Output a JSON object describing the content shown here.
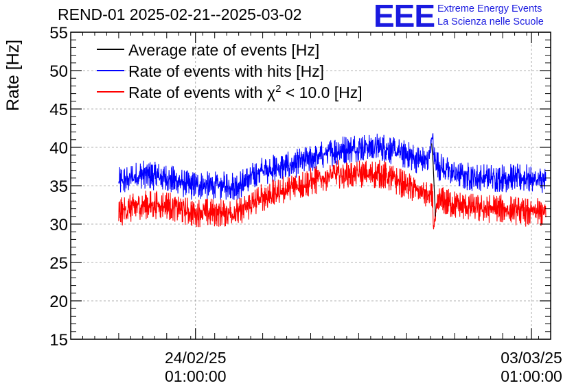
{
  "title": "REND-01 2025-02-21--2025-03-02",
  "logo": {
    "mark": "EEE",
    "line1": "Extreme Energy Events",
    "line2": "La Scienza nelle Scuole"
  },
  "colors": {
    "average": "#000000",
    "hits": "#0000ff",
    "chi2": "#ff0000",
    "grid": "#999999",
    "logo": "#1a1ae0"
  },
  "chart_data": {
    "type": "line",
    "title": "REND-01 2025-02-21--2025-03-02",
    "ylabel": "Rate [Hz]",
    "xlabel": "",
    "ylim": [
      15,
      55
    ],
    "xlim_days": [
      0,
      10
    ],
    "y_ticks": [
      15,
      20,
      25,
      30,
      35,
      40,
      45,
      50,
      55
    ],
    "x_ticks": [
      {
        "day": 2.6,
        "label1": "24/02/25",
        "label2": "01:00:00"
      },
      {
        "day": 9.6,
        "label1": "03/03/25",
        "label2": "01:00:00"
      }
    ],
    "grid": true,
    "legend_position": "top-left",
    "legend": [
      {
        "name": "Average rate of events [Hz]",
        "key": "average"
      },
      {
        "name": "Rate of events with hits [Hz]",
        "key": "hits"
      },
      {
        "name": "Rate of events with χ² < 10.0 [Hz]",
        "key": "chi2",
        "prefix": "Rate of events with ",
        "chi": "χ",
        "sup": "2",
        "suffix": " < 10.0 [Hz]"
      }
    ],
    "series": [
      {
        "name": "Rate of events with hits [Hz]",
        "key": "hits",
        "x_days": [
          1.0,
          1.5,
          2.0,
          2.5,
          3.0,
          3.5,
          4.0,
          4.5,
          5.0,
          5.5,
          6.0,
          6.5,
          7.0,
          7.2,
          7.5,
          8.0,
          8.5,
          9.0,
          9.5,
          9.9
        ],
        "values": [
          35.5,
          36.5,
          36.0,
          35.0,
          35.0,
          35.0,
          37.0,
          37.5,
          38.5,
          39.5,
          40.0,
          40.0,
          39.0,
          38.5,
          38.0,
          36.5,
          36.0,
          36.0,
          36.0,
          35.5
        ],
        "noise": 1.3
      },
      {
        "name": "Rate of events with χ² < 10.0 [Hz]",
        "key": "chi2",
        "x_days": [
          1.0,
          1.5,
          2.0,
          2.5,
          3.0,
          3.5,
          4.0,
          4.5,
          5.0,
          5.5,
          6.0,
          6.5,
          7.0,
          7.2,
          7.5,
          8.0,
          8.5,
          9.0,
          9.5,
          9.9
        ],
        "values": [
          31.5,
          32.5,
          32.5,
          31.5,
          31.5,
          31.5,
          33.5,
          34.5,
          35.5,
          36.5,
          36.5,
          36.5,
          35.0,
          34.5,
          33.5,
          32.5,
          32.0,
          32.0,
          31.5,
          31.5
        ],
        "noise": 1.3
      }
    ],
    "spike": {
      "day": 7.55,
      "hits_peak": 42.3,
      "chi2_min": 28.3
    }
  }
}
